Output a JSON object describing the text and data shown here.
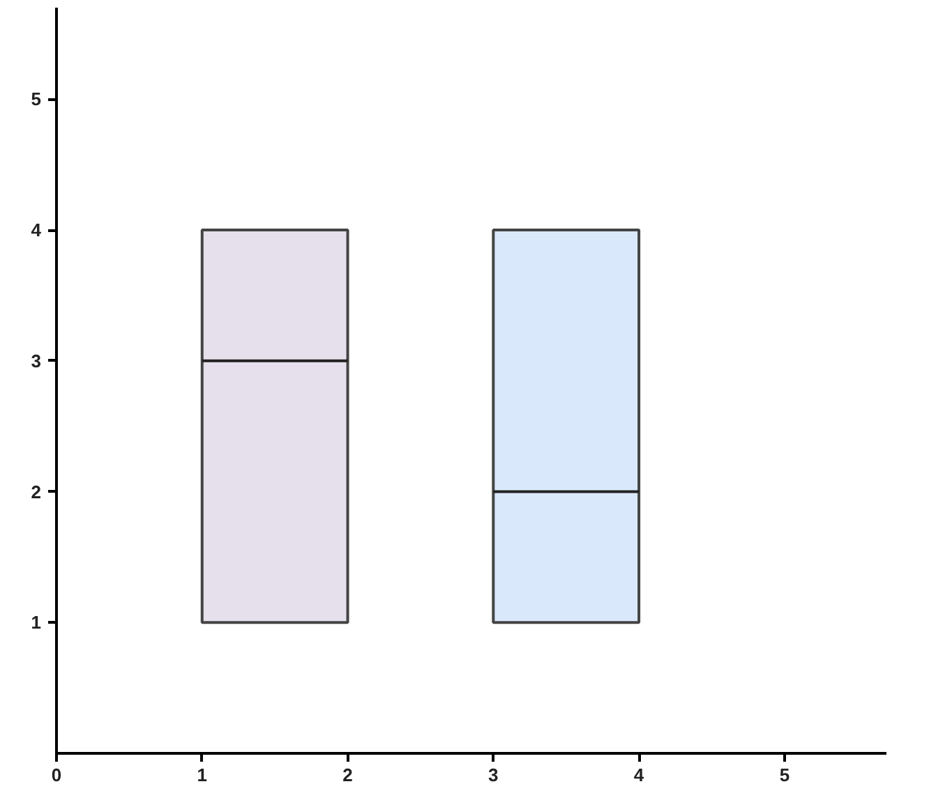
{
  "chart_data": {
    "type": "box",
    "x": [
      1.5,
      3.5
    ],
    "boxes": [
      {
        "low": 1,
        "q1": 1,
        "median": 3,
        "q3": 4,
        "high": 4
      },
      {
        "low": 1,
        "q1": 1,
        "median": 2,
        "q3": 4,
        "high": 4
      }
    ],
    "colors": [
      "#e6e0ec",
      "#dae8fc"
    ],
    "xlim": [
      0,
      5.7
    ],
    "ylim": [
      0,
      5.7
    ],
    "xticks": [
      0,
      1,
      2,
      3,
      4,
      5
    ],
    "yticks": [
      1,
      2,
      3,
      4,
      5
    ],
    "grid": false
  }
}
